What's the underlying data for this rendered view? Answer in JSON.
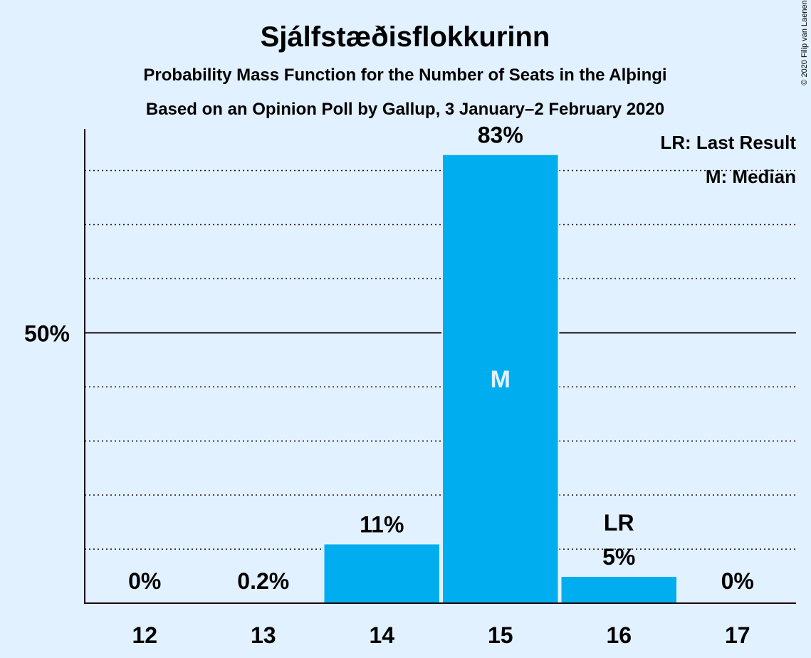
{
  "chart_data": {
    "type": "bar",
    "title": "Sjálfstæðisflokkurinn",
    "subtitle": "Probability Mass Function for the Number of Seats in the Alþingi",
    "subtitle2": "Based on an Opinion Poll by Gallup, 3 January–2 February 2020",
    "categories": [
      "12",
      "13",
      "14",
      "15",
      "16",
      "17"
    ],
    "values": [
      0,
      0.2,
      11,
      83,
      5,
      0
    ],
    "value_labels": [
      "0%",
      "0.2%",
      "11%",
      "83%",
      "5%",
      "0%"
    ],
    "ylim": [
      0,
      91
    ],
    "ytick_label": "50%",
    "ytick_value": 50,
    "gridlines": [
      10,
      20,
      30,
      40,
      60,
      70,
      80
    ],
    "median_index": 3,
    "median_marker": "M",
    "last_result_index": 4,
    "last_result_marker": "LR",
    "legend": [
      "LR: Last Result",
      "M: Median"
    ],
    "legend_position": "top-right",
    "copyright": "© 2020 Filip van Laenen",
    "colors": {
      "bar": "#00adef",
      "background": "#e2f1ff",
      "text": "#1a0a12"
    }
  }
}
